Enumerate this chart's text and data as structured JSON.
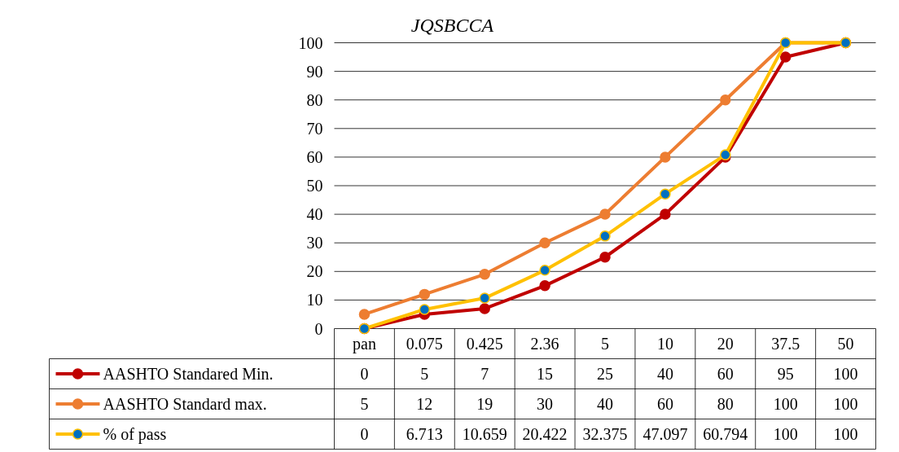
{
  "chart_data": {
    "type": "line",
    "title": "JQSBCCA",
    "categories": [
      "pan",
      "0.075",
      "0.425",
      "2.36",
      "5",
      "10",
      "20",
      "37.5",
      "50"
    ],
    "ylim": [
      0,
      100
    ],
    "yticks": [
      0,
      10,
      20,
      30,
      40,
      50,
      60,
      70,
      80,
      90,
      100
    ],
    "grid": "y",
    "legend": "bottom",
    "marker": "circle",
    "line_style": "solid",
    "data_labels": true,
    "series": [
      {
        "name": "AASHTO Standared Min.",
        "color": "#c00000",
        "values": [
          0,
          5,
          7,
          15,
          25,
          40,
          60,
          95,
          100
        ]
      },
      {
        "name": "AASHTO Standard max.",
        "color": "#ed7d31",
        "values": [
          5,
          12,
          19,
          30,
          40,
          60,
          80,
          100,
          100
        ]
      },
      {
        "name": "% of pass",
        "color": "#ffc000",
        "values": [
          0,
          6.713,
          10.659,
          20.422,
          32.375,
          47.097,
          60.794,
          100,
          100
        ]
      }
    ]
  }
}
